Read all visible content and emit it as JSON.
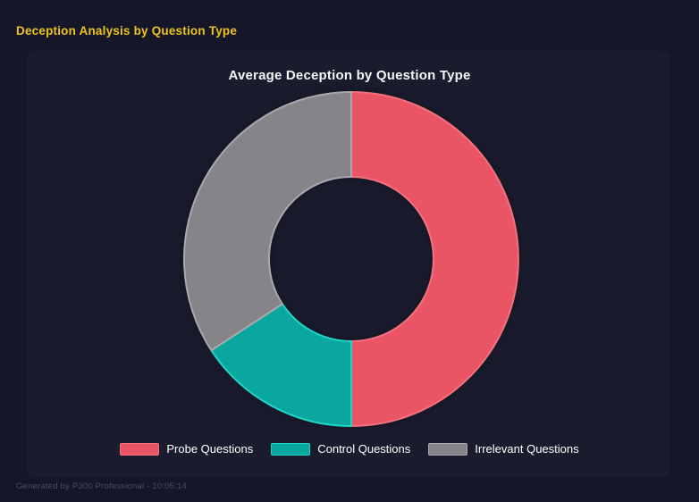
{
  "page": {
    "title": "Deception Analysis by Question Type",
    "title_color": "#edc31f",
    "background": "#151728",
    "panel_background": "#1a1c2e",
    "footer": "Generated by P300 Professional - 10:05:14"
  },
  "chart_data": {
    "type": "pie",
    "subtype": "donut",
    "title": "Average Deception by Question Type",
    "categories": [
      "Probe Questions",
      "Control Questions",
      "Irrelevant Questions"
    ],
    "values": [
      50,
      15.8,
      34.2
    ],
    "unit": "percent",
    "colors": [
      "#ea5565",
      "#09a79d",
      "#868489"
    ],
    "border_colors": [
      "#f3717e",
      "#1fd4c7",
      "#a9a8ad"
    ],
    "cutout_ratio": 0.49,
    "outer_radius_px": 187,
    "inner_radius_px": 92,
    "start_angle_deg": 0,
    "direction": "clockwise",
    "legend_position": "bottom",
    "grid": false
  }
}
